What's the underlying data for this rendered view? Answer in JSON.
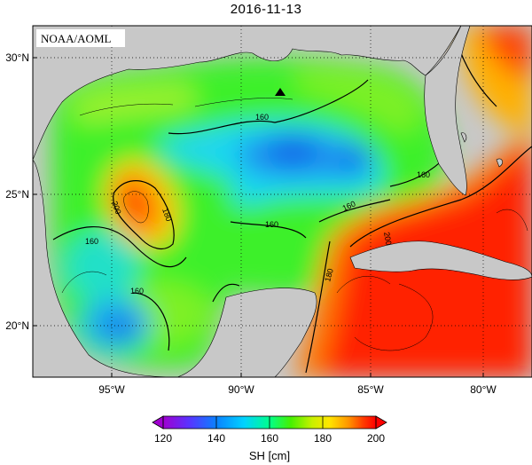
{
  "title": "2016-11-13",
  "credit": "NOAA/AOML",
  "map": {
    "lat_ticks": [
      "30°N",
      "25°N",
      "20°N"
    ],
    "lon_ticks": [
      "95°W",
      "90°W",
      "85°W",
      "80°W"
    ],
    "contour_labels": [
      "200",
      "180",
      "160",
      "160",
      "160",
      "160",
      "160",
      "180",
      "160",
      "180",
      "200"
    ],
    "marker": "triangle"
  },
  "colorbar": {
    "title": "SH [cm]",
    "ticks": [
      "120",
      "140",
      "160",
      "180",
      "200"
    ],
    "colors": [
      "#a000d0",
      "#5a32ff",
      "#0a82ff",
      "#00d2ff",
      "#00ff8c",
      "#46f000",
      "#c8f000",
      "#ffe600",
      "#ff9600",
      "#ff3c00",
      "#ff0000"
    ]
  },
  "colors": {
    "land": "#c8c8c8",
    "background": "#ffffff"
  }
}
